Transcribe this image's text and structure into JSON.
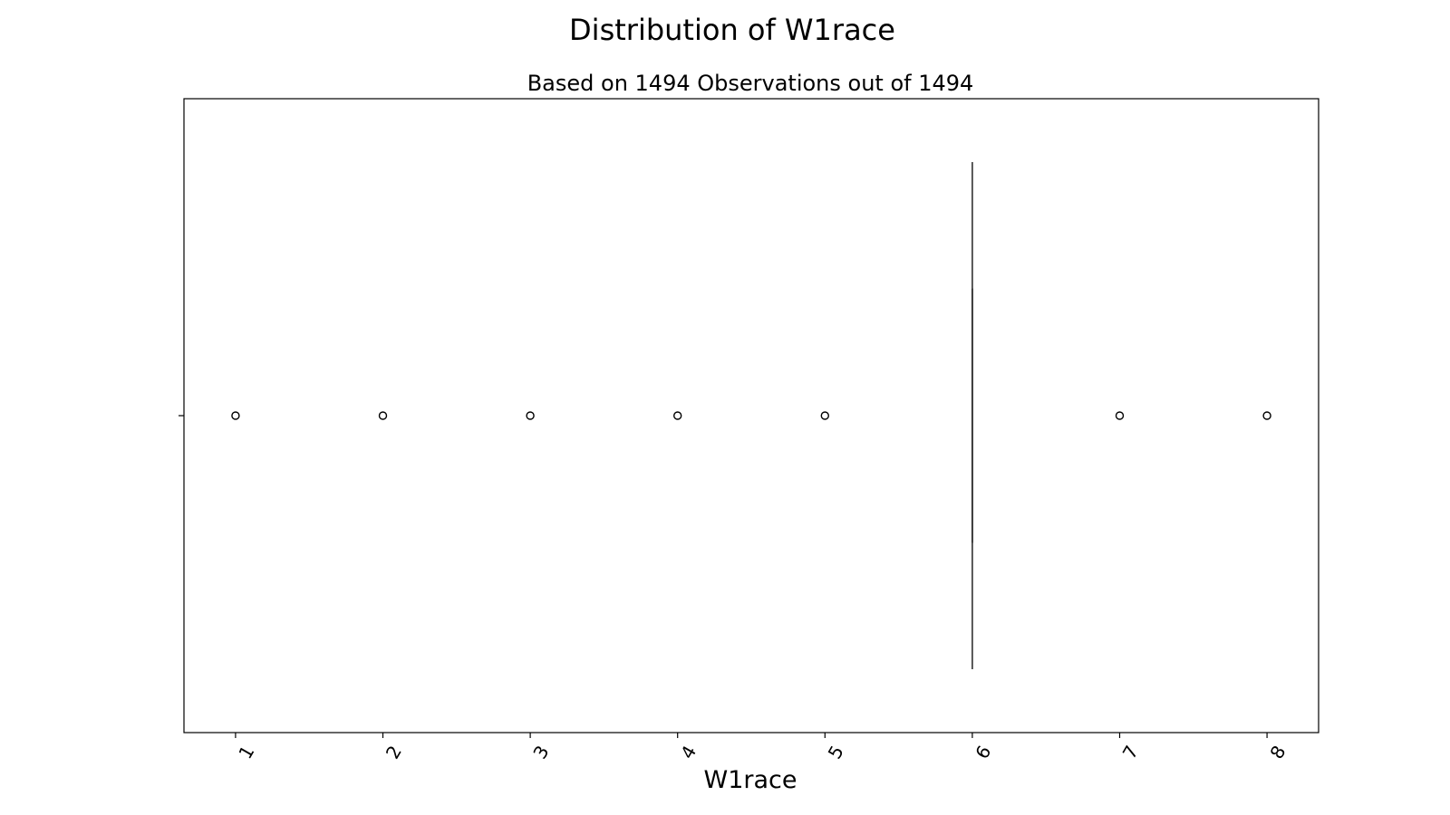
{
  "chart_data": {
    "type": "box",
    "orientation": "horizontal",
    "title": "Distribution of W1race",
    "subtitle": "Based on 1494 Observations out of 1494",
    "xlabel": "W1race",
    "ylabel": "",
    "xlim": [
      0.65,
      8.35
    ],
    "xticks": [
      "1",
      "2",
      "3",
      "4",
      "5",
      "6",
      "7",
      "8"
    ],
    "xtick_rotation": 60,
    "grid": false,
    "box": {
      "q1": 6,
      "median": 6,
      "q3": 6,
      "whisker_low": 6,
      "whisker_high": 6
    },
    "outliers": [
      1,
      2,
      3,
      4,
      5,
      7,
      8
    ],
    "colors": {
      "box_edge": "#3f3f3f",
      "axes": "#000000",
      "background": "#ffffff"
    }
  }
}
